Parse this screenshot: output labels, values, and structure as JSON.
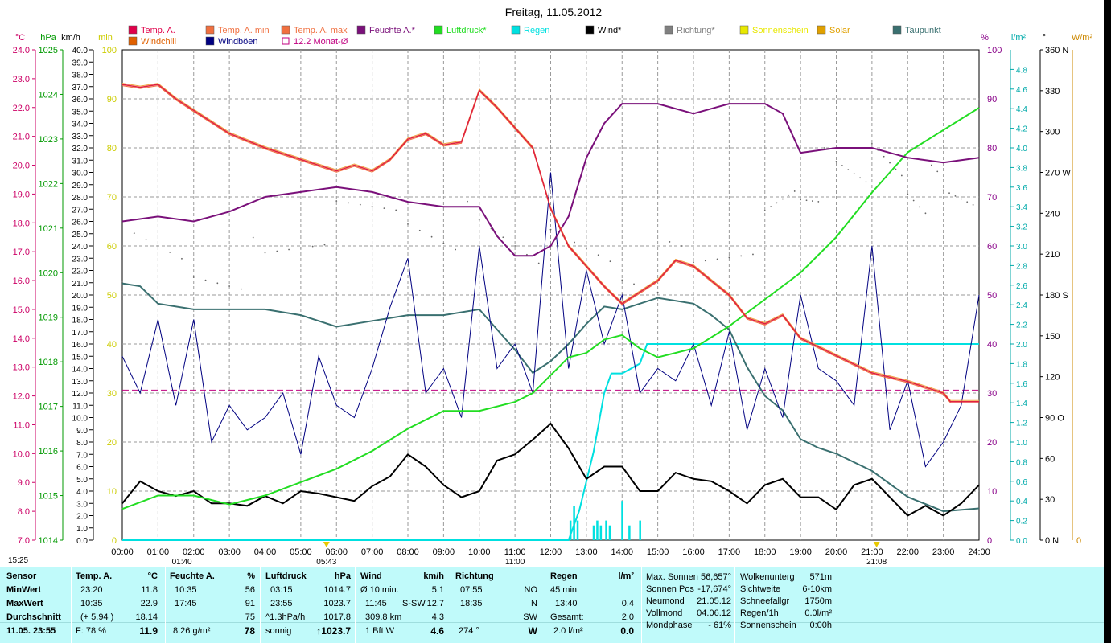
{
  "title": "Freitag, 11.05.2012",
  "legend": [
    {
      "label": "Temp. A.",
      "color": "#e0004a"
    },
    {
      "label": "Temp. A. min",
      "color": "#f07040"
    },
    {
      "label": "Temp. A. max",
      "color": "#f07040"
    },
    {
      "label": "Feuchte A.*",
      "color": "#7a107a"
    },
    {
      "label": "Luftdruck*",
      "color": "#22dd22"
    },
    {
      "label": "Regen",
      "color": "#00e0e0"
    },
    {
      "label": "Wind*",
      "color": "#000000"
    },
    {
      "label": "Richtung*",
      "color": "#808080"
    },
    {
      "label": "Sonnenschein",
      "color": "#e8e800"
    },
    {
      "label": "Solar",
      "color": "#e0a000"
    },
    {
      "label": "Taupunkt",
      "color": "#3a7070"
    },
    {
      "label": "Windchill",
      "color": "#e06000"
    },
    {
      "label": "Windböen",
      "color": "#000080"
    },
    {
      "label": "12.2 Monat-Ø",
      "color": "#c00080"
    }
  ],
  "axis_units": {
    "temp": "°C",
    "press": "hPa",
    "wind": "km/h",
    "min": "min",
    "hum": "%",
    "rain": "l/m²",
    "dir": "°",
    "solar": "W/m²"
  },
  "left_axes": {
    "temp": [
      "24.0",
      "23.0",
      "22.0",
      "21.0",
      "20.0",
      "19.0",
      "18.0",
      "17.0",
      "16.0",
      "15.0",
      "14.0",
      "13.0",
      "12.0",
      "11.0",
      "10.0",
      "9.0",
      "8.0",
      "7.0"
    ],
    "press": [
      "1025",
      "1024",
      "1023",
      "1022",
      "1021",
      "1020",
      "1019",
      "1018",
      "1017",
      "1016",
      "1015",
      "1014"
    ],
    "wind": [
      "40.0",
      "39.0",
      "38.0",
      "37.0",
      "36.0",
      "35.0",
      "34.0",
      "33.0",
      "32.0",
      "31.0",
      "30.0",
      "29.0",
      "28.0",
      "27.0",
      "26.0",
      "25.0",
      "24.0",
      "23.0",
      "22.0",
      "21.0",
      "20.0",
      "19.0",
      "18.0",
      "17.0",
      "16.0",
      "15.0",
      "14.0",
      "13.0",
      "12.0",
      "11.0",
      "10.0",
      "9.0",
      "8.0",
      "7.0",
      "6.0",
      "5.0",
      "4.0",
      "3.0",
      "2.0",
      "1.0",
      "0.0"
    ],
    "min": [
      "100",
      "90",
      "80",
      "70",
      "60",
      "50",
      "40",
      "30",
      "20",
      "10",
      "0"
    ]
  },
  "right_axes": {
    "hum": [
      "100",
      "90",
      "80",
      "70",
      "60",
      "50",
      "40",
      "30",
      "20",
      "10",
      "0"
    ],
    "rain": [
      "4.8",
      "4.6",
      "4.4",
      "4.2",
      "4.0",
      "3.8",
      "3.6",
      "3.4",
      "3.2",
      "3.0",
      "2.8",
      "2.6",
      "2.4",
      "2.2",
      "2.0",
      "1.8",
      "1.6",
      "1.4",
      "1.2",
      "1.0",
      "0.8",
      "0.6",
      "0.4",
      "0.2",
      "0.0"
    ],
    "dir": [
      "360 N",
      "330",
      "300",
      "270 W",
      "240",
      "210",
      "180 S",
      "150",
      "120",
      "90 O",
      "60",
      "30",
      "0 N"
    ],
    "solar": [
      "0"
    ]
  },
  "x_ticks": [
    "00:00",
    "01:00",
    "02:00",
    "03:00",
    "04:00",
    "05:00",
    "06:00",
    "07:00",
    "08:00",
    "09:00",
    "10:00",
    "11:00",
    "12:00",
    "13:00",
    "14:00",
    "15:00",
    "16:00",
    "17:00",
    "18:00",
    "19:00",
    "20:00",
    "21:00",
    "22:00",
    "23:00",
    "24:00"
  ],
  "sun_marks": {
    "now": "15:25",
    "sunrise": "05:43",
    "sunset": "21:08",
    "moonrise": "01:40",
    "noon": "11:00"
  },
  "chart_data": {
    "type": "line",
    "title": "Freitag, 11.05.2012",
    "x_range_hours": [
      0,
      24
    ],
    "series": [
      {
        "name": "Temp. A.",
        "unit": "°C",
        "x": [
          0,
          0.5,
          1,
          1.5,
          2,
          3,
          4,
          5,
          6,
          6.5,
          7,
          7.5,
          8,
          8.5,
          9,
          9.5,
          10,
          10.5,
          11,
          11.5,
          12,
          12.5,
          13,
          13.5,
          14,
          14.5,
          15,
          15.5,
          16,
          16.5,
          17,
          17.5,
          18,
          18.5,
          19,
          20,
          21,
          22,
          23,
          23.2,
          24
        ],
        "values": [
          22.8,
          22.7,
          22.8,
          22.3,
          21.9,
          21.1,
          20.6,
          20.2,
          19.8,
          20.0,
          19.8,
          20.2,
          20.9,
          21.1,
          20.7,
          20.8,
          22.6,
          22.0,
          21.3,
          20.6,
          18.5,
          17.2,
          16.5,
          15.8,
          15.2,
          15.6,
          16.0,
          16.7,
          16.5,
          16.0,
          15.5,
          14.7,
          14.5,
          14.8,
          14.0,
          13.4,
          12.8,
          12.5,
          12.1,
          11.8,
          11.8
        ]
      },
      {
        "name": "Feuchte A.",
        "unit": "%",
        "x": [
          0,
          1,
          2,
          3,
          4,
          5,
          6,
          7,
          8,
          9,
          10,
          10.5,
          11,
          11.5,
          12,
          12.5,
          13,
          13.5,
          14,
          15,
          16,
          17,
          18,
          18.5,
          19,
          20,
          21,
          22,
          23,
          24
        ],
        "values": [
          65,
          66,
          65,
          67,
          70,
          71,
          72,
          71,
          69,
          68,
          68,
          62,
          58,
          58,
          60,
          66,
          78,
          85,
          89,
          89,
          87,
          89,
          89,
          87,
          79,
          80,
          80,
          78,
          77,
          78
        ]
      },
      {
        "name": "Luftdruck",
        "unit": "hPa",
        "x": [
          0,
          1,
          2,
          3,
          4,
          5,
          6,
          7,
          8,
          9,
          10,
          11,
          11.5,
          12,
          12.5,
          13,
          13.5,
          14,
          14.5,
          15,
          16,
          17,
          18,
          19,
          20,
          21,
          22,
          23,
          24
        ],
        "values": [
          1014.7,
          1015.0,
          1015.0,
          1014.8,
          1015.0,
          1015.3,
          1015.6,
          1016.0,
          1016.5,
          1016.9,
          1016.9,
          1017.1,
          1017.3,
          1017.7,
          1018.1,
          1018.2,
          1018.5,
          1018.6,
          1018.3,
          1018.1,
          1018.3,
          1018.8,
          1019.4,
          1020.0,
          1020.8,
          1021.8,
          1022.7,
          1023.2,
          1023.7
        ]
      },
      {
        "name": "Taupunkt",
        "unit": "°C",
        "x": [
          0,
          0.5,
          1,
          2,
          3,
          4,
          5,
          6,
          7,
          8,
          9,
          10,
          11,
          11.5,
          12,
          12.5,
          13,
          13.5,
          14,
          15,
          16,
          16.5,
          17,
          17.5,
          18,
          18.5,
          19,
          19.5,
          20,
          21,
          22,
          23,
          24
        ],
        "values": [
          15.9,
          15.8,
          15.2,
          15.0,
          15.0,
          15.0,
          14.8,
          14.4,
          14.6,
          14.8,
          14.8,
          15.0,
          13.6,
          12.8,
          13.2,
          13.8,
          14.5,
          15.1,
          15.0,
          15.4,
          15.2,
          14.8,
          14.3,
          13.0,
          12.0,
          11.5,
          10.5,
          10.2,
          10.0,
          9.4,
          8.5,
          8.0,
          8.1
        ]
      },
      {
        "name": "Wind",
        "unit": "km/h",
        "x": [
          0,
          0.5,
          1,
          1.5,
          2,
          2.5,
          3,
          3.5,
          4,
          4.5,
          5,
          5.5,
          6,
          6.5,
          7,
          7.5,
          8,
          8.5,
          9,
          9.5,
          10,
          10.5,
          11,
          11.5,
          12,
          12.5,
          13,
          13.5,
          14,
          14.5,
          15,
          15.5,
          16,
          16.5,
          17,
          17.5,
          18,
          18.5,
          19,
          19.5,
          20,
          20.5,
          21,
          21.5,
          22,
          22.5,
          23,
          23.5,
          24
        ],
        "values": [
          3.0,
          4.8,
          4.0,
          3.6,
          4.0,
          3.0,
          3.0,
          2.8,
          3.6,
          3.0,
          4.0,
          3.8,
          3.5,
          3.2,
          4.4,
          5.2,
          7.0,
          6.0,
          4.5,
          3.5,
          4.0,
          6.5,
          7.0,
          8.2,
          9.5,
          7.5,
          5.0,
          6.0,
          6.0,
          4.0,
          4.0,
          5.5,
          5.0,
          4.8,
          4.0,
          3.0,
          4.5,
          5.0,
          3.5,
          3.5,
          2.5,
          4.5,
          5.0,
          3.5,
          2.0,
          2.8,
          2.0,
          3.0,
          4.5
        ]
      },
      {
        "name": "Windböen",
        "unit": "km/h",
        "x": [
          0,
          0.5,
          1,
          1.5,
          2,
          2.5,
          3,
          3.5,
          4,
          4.5,
          5,
          5.5,
          6,
          6.5,
          7,
          7.5,
          8,
          8.5,
          9,
          9.5,
          10,
          10.5,
          11,
          11.5,
          12,
          12.5,
          13,
          13.5,
          14,
          14.5,
          15,
          15.5,
          16,
          16.5,
          17,
          17.5,
          18,
          18.5,
          19,
          19.5,
          20,
          20.5,
          21,
          21.5,
          22,
          22.5,
          23,
          23.5,
          24
        ],
        "values": [
          15,
          12,
          18,
          11,
          18,
          8,
          11,
          9,
          10,
          12,
          7,
          15,
          11,
          10,
          14,
          19,
          23,
          12,
          14,
          10,
          24,
          14,
          16,
          12,
          30,
          14,
          22,
          16,
          20,
          12,
          14,
          13,
          16,
          11,
          17,
          9,
          14,
          10,
          20,
          14,
          13,
          11,
          24,
          9,
          13,
          6,
          8,
          11,
          20
        ]
      },
      {
        "name": "Regen",
        "unit": "l/m²",
        "x": [
          0,
          12.5,
          12.8,
          13.0,
          13.2,
          13.5,
          13.7,
          14.0,
          14.5,
          14.7,
          15,
          16,
          17,
          18,
          19,
          20,
          21,
          22,
          23,
          24
        ],
        "values": [
          0,
          0,
          0.3,
          0.6,
          0.9,
          1.5,
          1.7,
          1.7,
          1.8,
          2.0,
          2.0,
          2.0,
          2.0,
          2.0,
          2.0,
          2.0,
          2.0,
          2.0,
          2.0,
          2.0
        ]
      },
      {
        "name": "12.2 Monat-Ø",
        "unit": "°C",
        "x": [
          0,
          24
        ],
        "values": [
          12.2,
          12.2
        ]
      },
      {
        "name": "Richtung",
        "unit": "°",
        "x": [
          0,
          2,
          4,
          6,
          8,
          10,
          12,
          14,
          16,
          18,
          19,
          20,
          21,
          22,
          23,
          24
        ],
        "values": [
          210,
          200,
          205,
          230,
          240,
          230,
          210,
          200,
          200,
          225,
          260,
          275,
          275,
          265,
          255,
          260
        ]
      }
    ],
    "regen_1h_bars": {
      "x": [
        12.55,
        12.65,
        12.75,
        13.2,
        13.3,
        13.4,
        13.55,
        13.65,
        14.0,
        14.2,
        14.5
      ],
      "values": [
        0.2,
        0.35,
        0.2,
        0.15,
        0.2,
        0.15,
        0.2,
        0.15,
        0.4,
        0.15,
        0.2
      ]
    }
  },
  "stats": {
    "sensor": {
      "header": "Sensor",
      "rows": [
        "MinWert",
        "MaxWert",
        "Durchschnitt",
        "11.05. 23:55"
      ]
    },
    "temp": {
      "header": "Temp. A.",
      "unit": "°C",
      "rows": [
        [
          "23:20",
          "11.8"
        ],
        [
          "10:35",
          "22.9"
        ],
        [
          "(+ 5.94 )",
          "18.14"
        ],
        [
          "F: 78 %",
          "11.9"
        ]
      ]
    },
    "feuchte": {
      "header": "Feuchte A.",
      "unit": "%",
      "rows": [
        [
          "10:35",
          "56"
        ],
        [
          "17:45",
          "91"
        ],
        [
          "",
          "75"
        ],
        [
          "8.26 g/m²",
          "78"
        ]
      ]
    },
    "luftdruck": {
      "header": "Luftdruck",
      "unit": "hPa",
      "rows": [
        [
          "03:15",
          "1014.7"
        ],
        [
          "23:55",
          "1023.7"
        ],
        [
          "^1.3hPa/h",
          "1017.8"
        ],
        [
          "sonnig",
          "↑1023.7"
        ]
      ]
    },
    "wind": {
      "header": "Wind",
      "unit": "km/h",
      "rows": [
        [
          "Ø 10 min.",
          "",
          "5.1"
        ],
        [
          "11:45",
          "S-SW",
          "12.7"
        ],
        [
          "309.8 km",
          "",
          "4.3"
        ],
        [
          "1 Bft W",
          "",
          "4.6"
        ]
      ]
    },
    "richtung": {
      "header": "Richtung",
      "rows": [
        [
          "07:55",
          "NO"
        ],
        [
          "18:35",
          "N"
        ],
        [
          "",
          "SW"
        ],
        [
          "274 °",
          "W"
        ]
      ]
    },
    "regen": {
      "header": "Regen",
      "unit": "l/m²",
      "rows": [
        [
          "45 min.",
          ""
        ],
        [
          "13:40",
          "0.4"
        ],
        [
          "Gesamt:",
          "2.0"
        ],
        [
          "2.0 l/m²",
          "0.0"
        ]
      ]
    },
    "sonne": {
      "rows": [
        [
          "Max. Sonnen",
          "56,657°"
        ],
        [
          "Sonnen Pos",
          "-17,674°"
        ],
        [
          "Neumond",
          "21.05.12"
        ],
        [
          "Vollmond",
          "04.06.12"
        ],
        [
          "Mondphase",
          "- 61%"
        ]
      ]
    },
    "wolken": {
      "rows": [
        [
          "Wolkenunterg",
          "571m"
        ],
        [
          "Sichtweite",
          "6-10km"
        ],
        [
          "Schneefallgr",
          "1750m"
        ],
        [
          "Regen/1h",
          "0.0l/m²"
        ],
        [
          "Sonnenschein",
          "0:00h"
        ]
      ]
    }
  }
}
